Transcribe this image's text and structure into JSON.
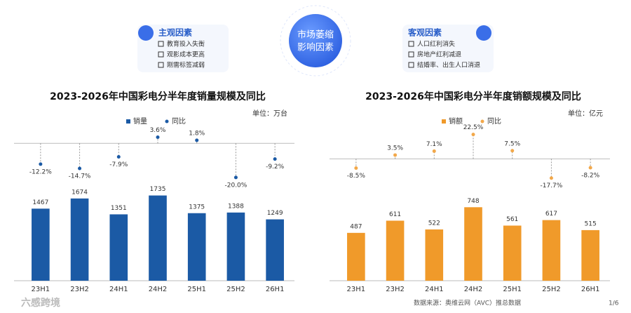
{
  "header": {
    "left": {
      "title": "主观因素",
      "items": [
        "教育投入失衡",
        "观影成本更高",
        "刚需标签减弱"
      ]
    },
    "center": [
      "市场萎缩",
      "影响因素"
    ],
    "right": {
      "title": "客观因素",
      "items": [
        "人口红利消失",
        "房地产红利减退",
        "结婚率、出生人口消退"
      ]
    }
  },
  "chart_data": [
    {
      "type": "bar",
      "title": "2023-2026年中国彩电分半年度销量规模及同比",
      "unit": "单位：万台",
      "categories": [
        "23H1",
        "23H2",
        "24H1",
        "24H2",
        "25H1",
        "25H2",
        "26H1"
      ],
      "ylim": [
        0,
        2000
      ],
      "y2lim": [
        -25,
        10
      ],
      "series": [
        {
          "name": "销量",
          "color": "#1b5aa5",
          "values": [
            1467,
            1674,
            1351,
            1735,
            1375,
            1388,
            1249
          ]
        },
        {
          "name": "同比",
          "color": "#1b5aa5",
          "axis": "y2",
          "values": [
            -12.2,
            -14.7,
            -7.9,
            3.6,
            1.8,
            -20.0,
            -9.2
          ],
          "value_labels": [
            "-12.2%",
            "-14.7%",
            "-7.9%",
            "3.6%",
            "1.8%",
            "-20.0%",
            "-9.2%"
          ]
        }
      ]
    },
    {
      "type": "bar",
      "title": "2023-2026年中国彩电分半年度销额规模及同比",
      "unit": "单位：亿元",
      "categories": [
        "23H1",
        "23H2",
        "24H1",
        "24H2",
        "25H1",
        "25H2",
        "26H1"
      ],
      "ylim": [
        0,
        1000
      ],
      "y2lim": [
        -25,
        30
      ],
      "series": [
        {
          "name": "销额",
          "color": "#f09a2a",
          "values": [
            487,
            611,
            522,
            748,
            561,
            617,
            515
          ]
        },
        {
          "name": "同比",
          "color": "#f2a84a",
          "axis": "y2",
          "values": [
            -8.5,
            3.5,
            7.1,
            22.5,
            7.5,
            -17.7,
            -8.2
          ],
          "value_labels": [
            "-8.5%",
            "3.5%",
            "7.1%",
            "22.5%",
            "7.5%",
            "-17.7%",
            "-8.2%"
          ]
        }
      ]
    }
  ],
  "footer": {
    "source": "数据来源：奥维云网（AVC）推总数据",
    "page": "1/6",
    "logo": "六感跨境"
  }
}
